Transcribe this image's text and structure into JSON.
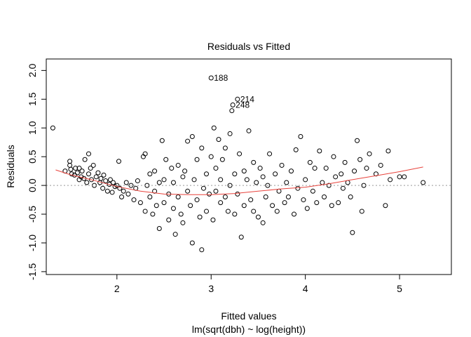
{
  "chart_data": {
    "type": "scatter",
    "title": "Residuals vs Fitted",
    "xlabel": "Fitted values",
    "subtitle": "lm(sqrt(dbh) ~ log(height))",
    "ylabel": "Residuals",
    "xlim": [
      1.25,
      5.55
    ],
    "ylim": [
      -1.55,
      2.2
    ],
    "x_ticks": [
      2,
      3,
      4,
      5
    ],
    "y_ticks": [
      -1.5,
      -1.0,
      -0.5,
      0.0,
      0.5,
      1.0,
      1.5,
      2.0
    ],
    "x_tick_labels": [
      "2",
      "3",
      "4",
      "5"
    ],
    "y_tick_labels": [
      "-1.5",
      "-1.0",
      "-0.5",
      "0.0",
      "0.5",
      "1.0",
      "1.5",
      "2.0"
    ],
    "zero_line": 0,
    "colors": {
      "points": "#000000",
      "smoother": "#e8433c",
      "zero_line": "#999999"
    },
    "annotations": [
      {
        "label": "188",
        "x": 3.0,
        "y": 1.87
      },
      {
        "label": "214",
        "x": 3.28,
        "y": 1.5
      },
      {
        "label": "248",
        "x": 3.23,
        "y": 1.4
      }
    ],
    "smoother": {
      "x": [
        1.35,
        1.5,
        1.75,
        2.0,
        2.25,
        2.5,
        2.75,
        3.0,
        3.25,
        3.5,
        3.75,
        4.0,
        4.25,
        4.5,
        4.75,
        5.0,
        5.25
      ],
      "y": [
        0.27,
        0.19,
        0.09,
        -0.02,
        -0.1,
        -0.15,
        -0.16,
        -0.16,
        -0.14,
        -0.1,
        -0.06,
        -0.03,
        0.03,
        0.1,
        0.17,
        0.24,
        0.32
      ]
    },
    "points": [
      [
        1.32,
        1.0
      ],
      [
        1.45,
        0.25
      ],
      [
        1.5,
        0.35
      ],
      [
        1.5,
        0.42
      ],
      [
        1.51,
        0.28
      ],
      [
        1.52,
        0.2
      ],
      [
        1.55,
        0.18
      ],
      [
        1.56,
        0.3
      ],
      [
        1.58,
        0.22
      ],
      [
        1.6,
        0.1
      ],
      [
        1.6,
        0.3
      ],
      [
        1.62,
        0.15
      ],
      [
        1.63,
        0.25
      ],
      [
        1.65,
        0.12
      ],
      [
        1.66,
        0.45
      ],
      [
        1.68,
        0.05
      ],
      [
        1.7,
        0.55
      ],
      [
        1.7,
        0.2
      ],
      [
        1.72,
        0.3
      ],
      [
        1.73,
        0.1
      ],
      [
        1.75,
        0.35
      ],
      [
        1.76,
        0.0
      ],
      [
        1.78,
        0.15
      ],
      [
        1.8,
        0.22
      ],
      [
        1.82,
        0.05
      ],
      [
        1.83,
        0.12
      ],
      [
        1.85,
        -0.05
      ],
      [
        1.86,
        0.18
      ],
      [
        1.88,
        0.08
      ],
      [
        1.9,
        -0.1
      ],
      [
        1.92,
        0.02
      ],
      [
        1.93,
        0.1
      ],
      [
        1.95,
        -0.12
      ],
      [
        1.96,
        0.05
      ],
      [
        1.98,
        -0.02
      ],
      [
        2.0,
        0.0
      ],
      [
        2.02,
        0.42
      ],
      [
        2.03,
        -0.05
      ],
      [
        2.05,
        -0.2
      ],
      [
        2.07,
        -0.1
      ],
      [
        2.1,
        0.05
      ],
      [
        2.12,
        -0.15
      ],
      [
        2.15,
        0.0
      ],
      [
        2.18,
        -0.25
      ],
      [
        2.2,
        -0.05
      ],
      [
        2.22,
        0.08
      ],
      [
        2.25,
        -0.3
      ],
      [
        2.28,
        0.5
      ],
      [
        2.3,
        0.55
      ],
      [
        2.3,
        -0.45
      ],
      [
        2.32,
        0.0
      ],
      [
        2.35,
        -0.2
      ],
      [
        2.35,
        0.2
      ],
      [
        2.38,
        -0.5
      ],
      [
        2.4,
        -0.1
      ],
      [
        2.4,
        0.25
      ],
      [
        2.42,
        -0.35
      ],
      [
        2.45,
        0.05
      ],
      [
        2.45,
        -0.75
      ],
      [
        2.48,
        0.78
      ],
      [
        2.5,
        -0.3
      ],
      [
        2.5,
        0.1
      ],
      [
        2.52,
        0.45
      ],
      [
        2.55,
        -0.15
      ],
      [
        2.55,
        -0.6
      ],
      [
        2.58,
        0.3
      ],
      [
        2.6,
        -0.4
      ],
      [
        2.6,
        0.05
      ],
      [
        2.62,
        -0.85
      ],
      [
        2.65,
        -0.2
      ],
      [
        2.65,
        0.35
      ],
      [
        2.68,
        -0.5
      ],
      [
        2.7,
        0.15
      ],
      [
        2.7,
        -0.65
      ],
      [
        2.72,
        0.25
      ],
      [
        2.75,
        -0.1
      ],
      [
        2.75,
        0.77
      ],
      [
        2.78,
        -0.35
      ],
      [
        2.8,
        0.85
      ],
      [
        2.8,
        -1.0
      ],
      [
        2.82,
        0.1
      ],
      [
        2.85,
        -0.25
      ],
      [
        2.85,
        0.45
      ],
      [
        2.88,
        -0.55
      ],
      [
        2.9,
        0.65
      ],
      [
        2.9,
        -1.12
      ],
      [
        2.92,
        -0.05
      ],
      [
        2.95,
        0.2
      ],
      [
        2.95,
        -0.45
      ],
      [
        2.98,
        -0.15
      ],
      [
        3.0,
        1.87
      ],
      [
        3.0,
        0.5
      ],
      [
        3.02,
        -0.6
      ],
      [
        3.03,
        1.0
      ],
      [
        3.05,
        0.3
      ],
      [
        3.05,
        -0.1
      ],
      [
        3.08,
        0.8
      ],
      [
        3.1,
        -0.3
      ],
      [
        3.1,
        0.1
      ],
      [
        3.12,
        0.45
      ],
      [
        3.15,
        -0.2
      ],
      [
        3.15,
        0.65
      ],
      [
        3.18,
        -0.45
      ],
      [
        3.2,
        0.9
      ],
      [
        3.2,
        0.0
      ],
      [
        3.22,
        1.3
      ],
      [
        3.23,
        1.4
      ],
      [
        3.25,
        0.2
      ],
      [
        3.25,
        -0.5
      ],
      [
        3.28,
        1.5
      ],
      [
        3.28,
        -0.15
      ],
      [
        3.3,
        0.55
      ],
      [
        3.32,
        -0.9
      ],
      [
        3.35,
        0.25
      ],
      [
        3.35,
        -0.35
      ],
      [
        3.38,
        0.1
      ],
      [
        3.4,
        0.95
      ],
      [
        3.42,
        -0.25
      ],
      [
        3.45,
        0.4
      ],
      [
        3.45,
        -0.45
      ],
      [
        3.48,
        0.05
      ],
      [
        3.5,
        -0.55
      ],
      [
        3.52,
        0.3
      ],
      [
        3.55,
        -0.65
      ],
      [
        3.55,
        0.15
      ],
      [
        3.58,
        -0.2
      ],
      [
        3.6,
        0.0
      ],
      [
        3.62,
        0.55
      ],
      [
        3.65,
        -0.35
      ],
      [
        3.68,
        0.2
      ],
      [
        3.7,
        -0.45
      ],
      [
        3.72,
        -0.1
      ],
      [
        3.75,
        0.35
      ],
      [
        3.78,
        -0.3
      ],
      [
        3.8,
        0.05
      ],
      [
        3.82,
        -0.2
      ],
      [
        3.85,
        0.25
      ],
      [
        3.88,
        -0.5
      ],
      [
        3.9,
        0.62
      ],
      [
        3.92,
        -0.05
      ],
      [
        3.95,
        0.85
      ],
      [
        3.98,
        -0.25
      ],
      [
        4.0,
        0.1
      ],
      [
        4.02,
        -0.4
      ],
      [
        4.05,
        0.4
      ],
      [
        4.08,
        -0.1
      ],
      [
        4.1,
        0.3
      ],
      [
        4.12,
        -0.3
      ],
      [
        4.15,
        0.6
      ],
      [
        4.18,
        0.05
      ],
      [
        4.2,
        -0.2
      ],
      [
        4.22,
        0.3
      ],
      [
        4.25,
        0.0
      ],
      [
        4.28,
        -0.35
      ],
      [
        4.3,
        0.5
      ],
      [
        4.32,
        0.15
      ],
      [
        4.35,
        -0.3
      ],
      [
        4.38,
        0.2
      ],
      [
        4.4,
        -0.05
      ],
      [
        4.42,
        0.4
      ],
      [
        4.45,
        0.05
      ],
      [
        4.48,
        -0.2
      ],
      [
        4.5,
        -0.82
      ],
      [
        4.52,
        0.25
      ],
      [
        4.55,
        0.78
      ],
      [
        4.58,
        0.45
      ],
      [
        4.6,
        -0.45
      ],
      [
        4.62,
        0.0
      ],
      [
        4.65,
        0.3
      ],
      [
        4.68,
        0.55
      ],
      [
        4.75,
        0.2
      ],
      [
        4.8,
        0.35
      ],
      [
        4.85,
        -0.35
      ],
      [
        4.88,
        0.6
      ],
      [
        4.9,
        0.1
      ],
      [
        5.0,
        0.15
      ],
      [
        5.05,
        0.15
      ],
      [
        5.25,
        0.05
      ]
    ]
  }
}
